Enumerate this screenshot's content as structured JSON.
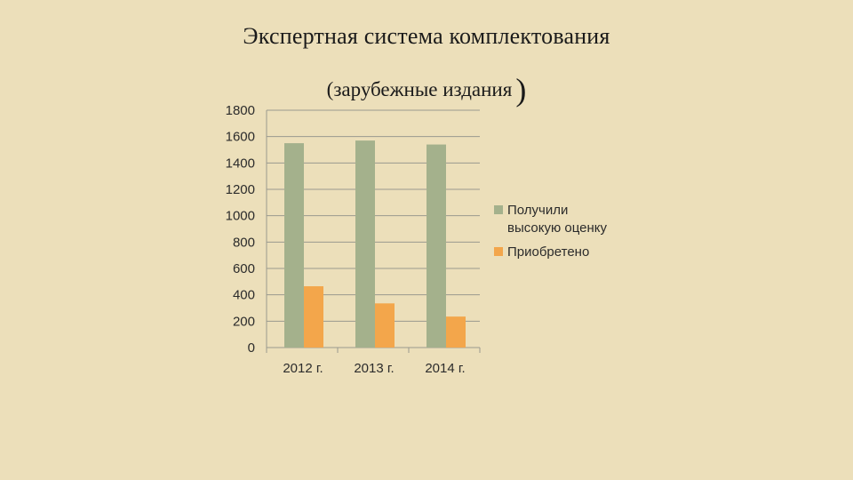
{
  "slide": {
    "title_line1": "Экспертная система комплектования",
    "title_line2_text": "(зарубежные издания",
    "title_line2_close": ")"
  },
  "chart_data": {
    "type": "bar",
    "categories": [
      "2012 г.",
      "2013 г.",
      "2014 г."
    ],
    "series": [
      {
        "name_lines": [
          "Получили",
          "высокую оценку"
        ],
        "name": "Получили высокую оценку",
        "color": "#a4b18c",
        "values": [
          1550,
          1570,
          1540
        ]
      },
      {
        "name_lines": [
          "Приобретено"
        ],
        "name": "Приобретено",
        "color": "#f3a64b",
        "values": [
          465,
          335,
          235
        ]
      }
    ],
    "ylim": [
      0,
      1800
    ],
    "yticks": [
      "0",
      "200",
      "400",
      "600",
      "800",
      "1000",
      "1200",
      "1400",
      "1600",
      "1800"
    ],
    "grid": true,
    "legend": "right"
  }
}
